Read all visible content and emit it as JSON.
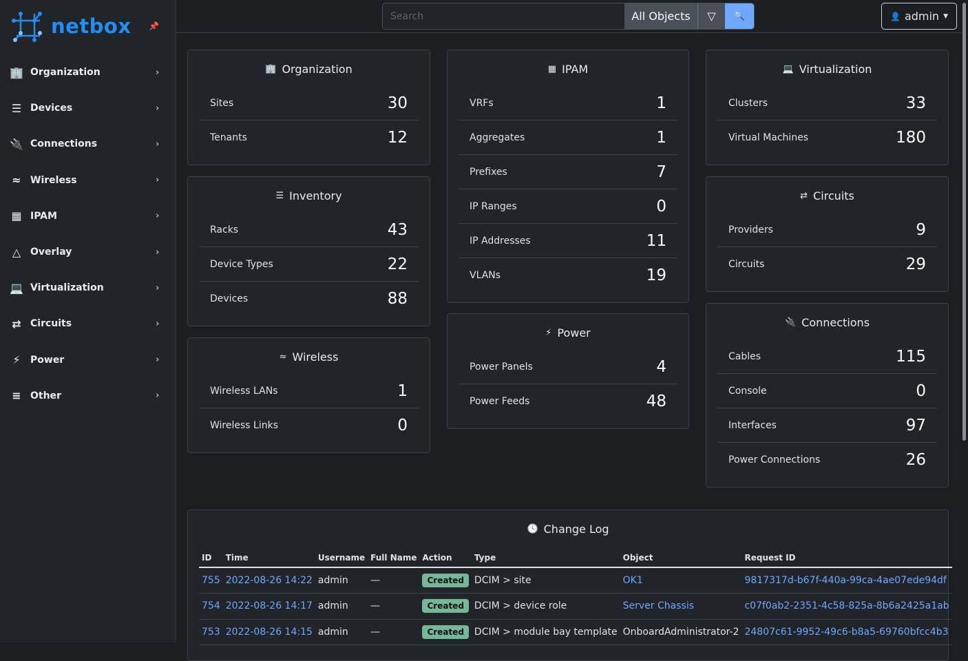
{
  "brand": {
    "name": "netbox",
    "accent": "#1f8ff5"
  },
  "sidebar": {
    "items": [
      {
        "label": "Organization",
        "icon": "domain-icon"
      },
      {
        "label": "Devices",
        "icon": "server-icon"
      },
      {
        "label": "Connections",
        "icon": "connection-icon"
      },
      {
        "label": "Wireless",
        "icon": "wifi-icon"
      },
      {
        "label": "IPAM",
        "icon": "counter-icon"
      },
      {
        "label": "Overlay",
        "icon": "graph-icon"
      },
      {
        "label": "Virtualization",
        "icon": "monitor-icon"
      },
      {
        "label": "Circuits",
        "icon": "transit-icon"
      },
      {
        "label": "Power",
        "icon": "flash-icon"
      },
      {
        "label": "Other",
        "icon": "notes-icon"
      }
    ]
  },
  "header": {
    "search_placeholder": "Search",
    "object_type": "All Objects",
    "user": "admin"
  },
  "cards": {
    "organization": {
      "title": "Organization",
      "rows": [
        {
          "label": "Sites",
          "value": "30"
        },
        {
          "label": "Tenants",
          "value": "12"
        }
      ]
    },
    "inventory": {
      "title": "Inventory",
      "rows": [
        {
          "label": "Racks",
          "value": "43"
        },
        {
          "label": "Device Types",
          "value": "22"
        },
        {
          "label": "Devices",
          "value": "88"
        }
      ]
    },
    "wireless": {
      "title": "Wireless",
      "rows": [
        {
          "label": "Wireless LANs",
          "value": "1"
        },
        {
          "label": "Wireless Links",
          "value": "0"
        }
      ]
    },
    "ipam": {
      "title": "IPAM",
      "rows": [
        {
          "label": "VRFs",
          "value": "1"
        },
        {
          "label": "Aggregates",
          "value": "1"
        },
        {
          "label": "Prefixes",
          "value": "7"
        },
        {
          "label": "IP Ranges",
          "value": "0"
        },
        {
          "label": "IP Addresses",
          "value": "11"
        },
        {
          "label": "VLANs",
          "value": "19"
        }
      ]
    },
    "power": {
      "title": "Power",
      "rows": [
        {
          "label": "Power Panels",
          "value": "4"
        },
        {
          "label": "Power Feeds",
          "value": "48"
        }
      ]
    },
    "virtualization": {
      "title": "Virtualization",
      "rows": [
        {
          "label": "Clusters",
          "value": "33"
        },
        {
          "label": "Virtual Machines",
          "value": "180"
        }
      ]
    },
    "circuits": {
      "title": "Circuits",
      "rows": [
        {
          "label": "Providers",
          "value": "9"
        },
        {
          "label": "Circuits",
          "value": "29"
        }
      ]
    },
    "connections": {
      "title": "Connections",
      "rows": [
        {
          "label": "Cables",
          "value": "115"
        },
        {
          "label": "Console",
          "value": "0"
        },
        {
          "label": "Interfaces",
          "value": "97"
        },
        {
          "label": "Power Connections",
          "value": "26"
        }
      ]
    }
  },
  "changelog": {
    "title": "Change Log",
    "columns": [
      "ID",
      "Time",
      "Username",
      "Full Name",
      "Action",
      "Type",
      "Object",
      "Request ID"
    ],
    "rows": [
      {
        "id": "755",
        "time": "2022-08-26 14:22",
        "username": "admin",
        "full_name": "—",
        "action": "Created",
        "type": "DCIM > site",
        "object": "OK1",
        "object_link": true,
        "request_id": "9817317d-b67f-440a-99ca-4ae07ede94df"
      },
      {
        "id": "754",
        "time": "2022-08-26 14:17",
        "username": "admin",
        "full_name": "—",
        "action": "Created",
        "type": "DCIM > device role",
        "object": "Server Chassis",
        "object_link": true,
        "request_id": "c07f0ab2-2351-4c58-825a-8b6a2425a1ab"
      },
      {
        "id": "753",
        "time": "2022-08-26 14:15",
        "username": "admin",
        "full_name": "—",
        "action": "Created",
        "type": "DCIM > module bay template",
        "object": "OnboardAdministrator-2",
        "object_link": false,
        "request_id": "24807c61-9952-49c6-b8a5-69760bfcc4b3"
      }
    ]
  }
}
